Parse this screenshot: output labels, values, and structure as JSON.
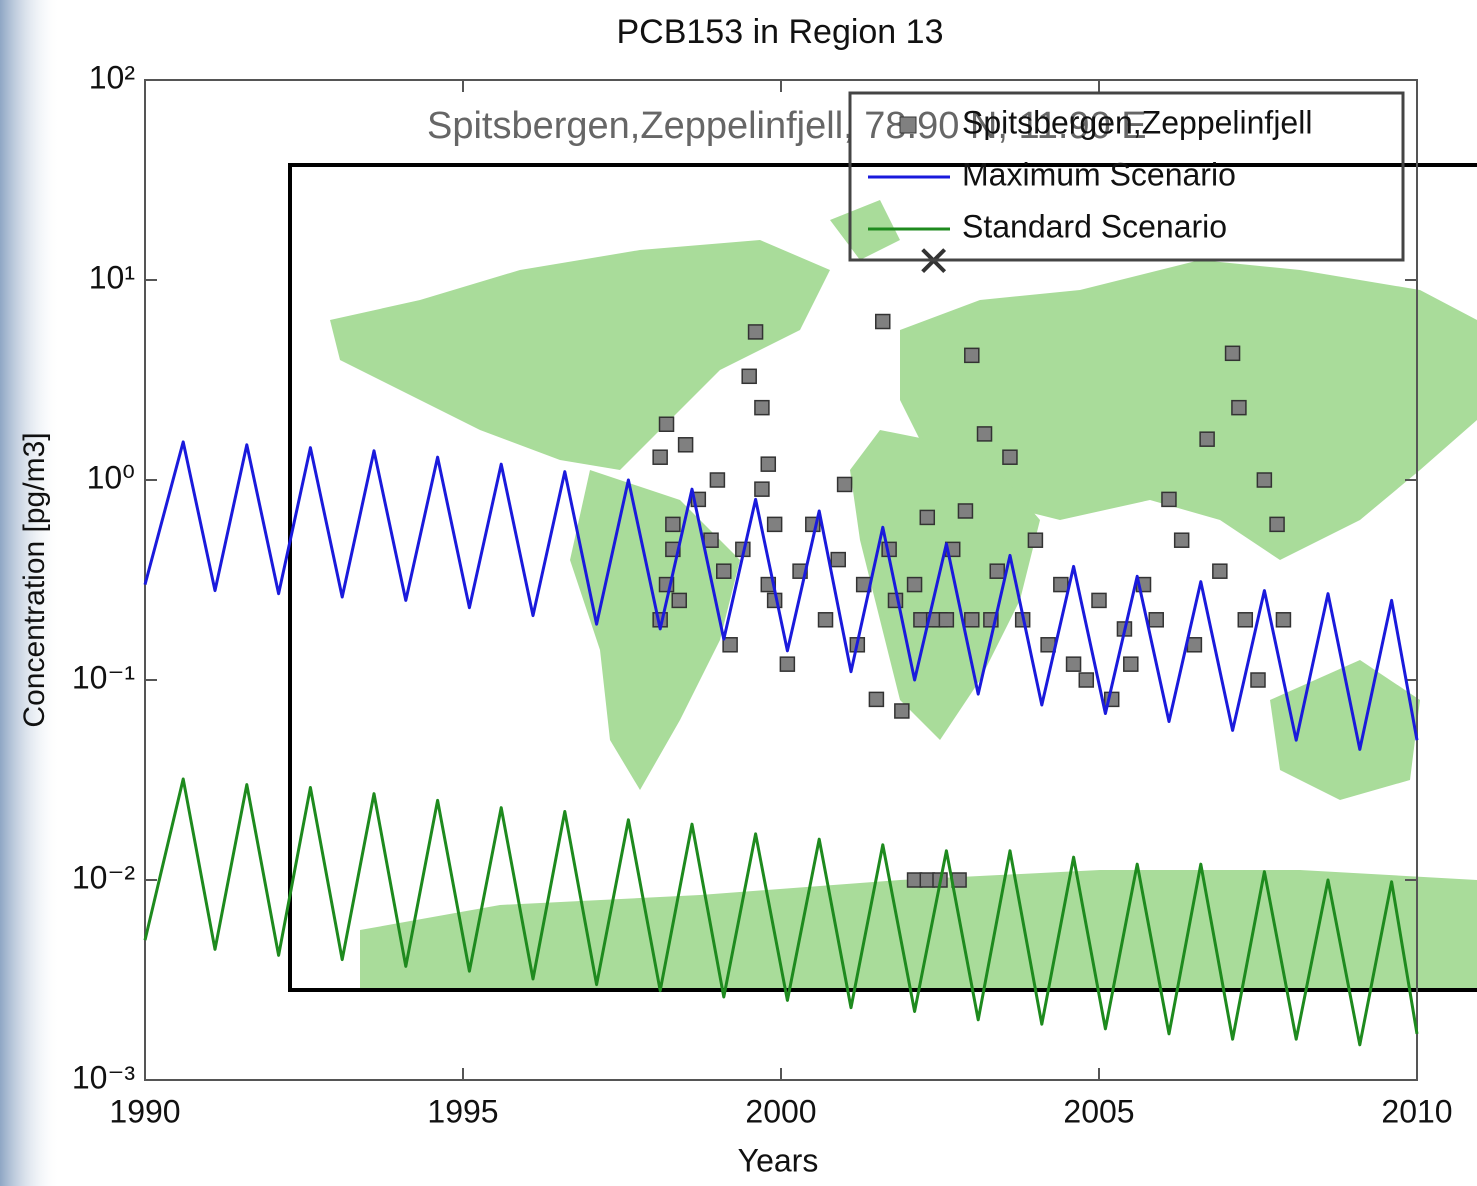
{
  "chart_data": {
    "type": "line",
    "title": "PCB153 in Region 13",
    "x_label": "Years",
    "y_label": "Concentration [pg/m3]",
    "annotation": "Spitsbergen,Zeppelinfjell, 78.90 N, 11.90 E",
    "log_y": true,
    "grid": false,
    "legend": "upper right",
    "xlim": [
      1990,
      2010
    ],
    "ylim": [
      0.001,
      100
    ],
    "xticks": [
      1990,
      1995,
      2000,
      2005,
      2010
    ],
    "yticks": [
      {
        "value": 0.001,
        "label": "10⁻³"
      },
      {
        "value": 0.01,
        "label": "10⁻²"
      },
      {
        "value": 0.1,
        "label": "10⁻¹"
      },
      {
        "value": 1,
        "label": "10⁰"
      },
      {
        "value": 10,
        "label": "10¹"
      },
      {
        "value": 100,
        "label": "10²"
      }
    ],
    "series": [
      {
        "name": "Spitsbergen,Zeppelinfjell",
        "type": "scatter",
        "color": "#808080",
        "x": [
          1998.1,
          1998.2,
          1998.3,
          1998.2,
          1998.4,
          1998.1,
          1998.3,
          1998.5,
          1998.7,
          1998.9,
          1999.0,
          1999.1,
          1999.2,
          1999.4,
          1999.5,
          1999.6,
          1999.7,
          1999.8,
          1999.9,
          1999.8,
          1999.7,
          1999.9,
          2000.1,
          2000.3,
          2000.5,
          2000.7,
          2000.9,
          2001.0,
          2001.2,
          2001.3,
          2001.5,
          2001.6,
          2001.7,
          2001.8,
          2001.9,
          2002.1,
          2002.3,
          2002.5,
          2002.7,
          2002.9,
          2003.0,
          2003.2,
          2003.4,
          2003.6,
          2003.8,
          2004.0,
          2004.2,
          2004.4,
          2004.6,
          2004.8,
          2005.0,
          2005.2,
          2005.4,
          2005.5,
          2005.7,
          2005.9,
          2006.1,
          2006.3,
          2006.5,
          2006.7,
          2006.9,
          2007.1,
          2007.2,
          2007.3,
          2007.5,
          2007.6,
          2007.8,
          2007.9,
          2002.1,
          2002.3,
          2002.5,
          2002.8,
          2003.0,
          2003.3,
          2002.2,
          2002.4,
          2002.6
        ],
        "values": [
          1.3,
          1.9,
          0.45,
          0.3,
          0.25,
          0.2,
          0.6,
          1.5,
          0.8,
          0.5,
          1.0,
          0.35,
          0.15,
          0.45,
          3.3,
          5.5,
          2.3,
          1.2,
          0.6,
          0.3,
          0.9,
          0.25,
          0.12,
          0.35,
          0.6,
          0.2,
          0.4,
          0.95,
          0.15,
          0.3,
          0.08,
          6.2,
          0.45,
          0.25,
          0.07,
          0.3,
          0.65,
          0.2,
          0.45,
          0.7,
          4.2,
          1.7,
          0.35,
          1.3,
          0.2,
          0.5,
          0.15,
          0.3,
          0.12,
          0.1,
          0.25,
          0.08,
          0.18,
          0.12,
          0.3,
          0.2,
          0.8,
          0.5,
          0.15,
          1.6,
          0.35,
          4.3,
          2.3,
          0.2,
          0.1,
          1.0,
          0.6,
          0.2,
          0.01,
          0.01,
          0.01,
          0.01,
          0.2,
          0.2,
          0.2,
          0.2,
          0.2
        ]
      },
      {
        "name": "Maximum Scenario",
        "type": "line",
        "color": "#1a1adc",
        "x": [
          1990,
          1990.6,
          1991.1,
          1991.6,
          1992.1,
          1992.6,
          1993.1,
          1993.6,
          1994.1,
          1994.6,
          1995.1,
          1995.6,
          1996.1,
          1996.6,
          1997.1,
          1997.6,
          1998.1,
          1998.6,
          1999.1,
          1999.6,
          2000.1,
          2000.6,
          2001.1,
          2001.6,
          2002.1,
          2002.6,
          2003.1,
          2003.6,
          2004.1,
          2004.6,
          2005.1,
          2005.6,
          2006.1,
          2006.6,
          2007.1,
          2007.6,
          2008.1,
          2008.6,
          2009.1,
          2009.6,
          2010
        ],
        "values": [
          0.3,
          1.55,
          0.28,
          1.5,
          0.27,
          1.45,
          0.26,
          1.4,
          0.25,
          1.3,
          0.23,
          1.2,
          0.21,
          1.1,
          0.19,
          1.0,
          0.18,
          0.9,
          0.16,
          0.8,
          0.14,
          0.7,
          0.11,
          0.58,
          0.1,
          0.48,
          0.085,
          0.42,
          0.075,
          0.37,
          0.068,
          0.33,
          0.062,
          0.31,
          0.056,
          0.28,
          0.05,
          0.27,
          0.045,
          0.25,
          0.05
        ]
      },
      {
        "name": "Standard Scenario",
        "type": "line",
        "color": "#1e8a1e",
        "x": [
          1990,
          1990.6,
          1991.1,
          1991.6,
          1992.1,
          1992.6,
          1993.1,
          1993.6,
          1994.1,
          1994.6,
          1995.1,
          1995.6,
          1996.1,
          1996.6,
          1997.1,
          1997.6,
          1998.1,
          1998.6,
          1999.1,
          1999.6,
          2000.1,
          2000.6,
          2001.1,
          2001.6,
          2002.1,
          2002.6,
          2003.1,
          2003.6,
          2004.1,
          2004.6,
          2005.1,
          2005.6,
          2006.1,
          2006.6,
          2007.1,
          2007.6,
          2008.1,
          2008.6,
          2009.1,
          2009.6,
          2010
        ],
        "values": [
          0.005,
          0.032,
          0.0045,
          0.03,
          0.0042,
          0.029,
          0.004,
          0.027,
          0.0037,
          0.025,
          0.0035,
          0.023,
          0.0032,
          0.022,
          0.003,
          0.02,
          0.0028,
          0.019,
          0.0026,
          0.017,
          0.0025,
          0.016,
          0.0023,
          0.015,
          0.0022,
          0.014,
          0.002,
          0.014,
          0.0019,
          0.013,
          0.0018,
          0.012,
          0.0017,
          0.012,
          0.0016,
          0.011,
          0.0016,
          0.01,
          0.0015,
          0.0098,
          0.0017
        ]
      }
    ],
    "markers": [
      {
        "x": 2002.4,
        "y": 12.5,
        "symbol": "x",
        "color": "#333333"
      }
    ]
  }
}
